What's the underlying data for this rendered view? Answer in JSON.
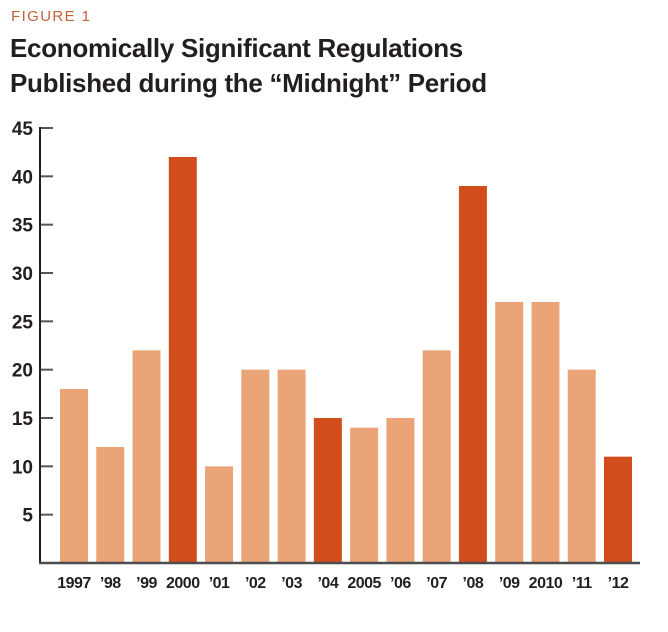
{
  "figure": {
    "label": "FIGURE 1",
    "title_line1": "Economically Significant Regulations",
    "title_line2": "Published during the “Midnight” Period"
  },
  "colors": {
    "background": "#ffffff",
    "figure_label": "#c2603a",
    "title_text": "#231f20",
    "bar_normal": "#eba478",
    "bar_highlight": "#d14e1c",
    "axis_line": "#231f20",
    "baseline": "#4d4d4f",
    "tick": "#55565a",
    "tick_text": "#231f20"
  },
  "chart_data": {
    "type": "bar",
    "title": "Economically Significant Regulations Published during the “Midnight” Period",
    "xlabel": "",
    "ylabel": "",
    "categories": [
      "1997",
      "’98",
      "’99",
      "2000",
      "’01",
      "’02",
      "’03",
      "’04",
      "2005",
      "’06",
      "’07",
      "’08",
      "’09",
      "2010",
      "’11",
      "’12"
    ],
    "values": [
      18,
      12,
      22,
      42,
      10,
      20,
      20,
      15,
      14,
      15,
      22,
      39,
      27,
      27,
      20,
      11
    ],
    "highlight_indices": [
      3,
      7,
      11,
      15
    ],
    "ylim": [
      0,
      45
    ],
    "ytick_step": 5,
    "grid": false,
    "legend": false
  }
}
